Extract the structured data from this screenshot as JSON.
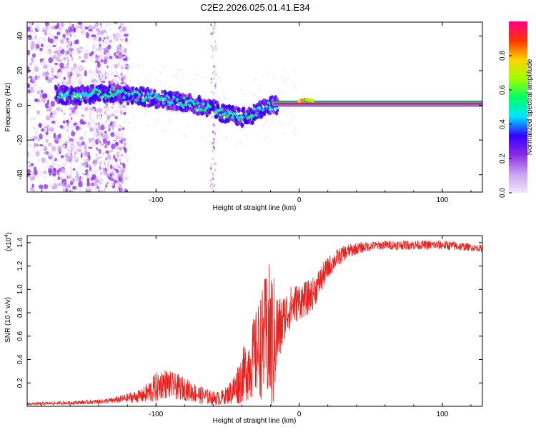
{
  "chart_data": [
    {
      "type": "heatmap",
      "title": "C2E2.2026.025.01.41.E34",
      "xlabel": "Height of straight line (km)",
      "ylabel": "Frequency (Hz)",
      "xlim": [
        -190,
        128
      ],
      "ylim": [
        -50,
        48
      ],
      "x_ticks": [
        -100,
        0,
        100
      ],
      "x_tick_labels": [
        "-100",
        "0",
        "100"
      ],
      "y_ticks": [
        -40,
        -20,
        0,
        20,
        40
      ],
      "y_tick_labels": [
        "-40",
        "-20",
        "0",
        "20",
        "40"
      ],
      "colorbar": {
        "label": "Normalized spectral amplitude",
        "range": [
          0,
          1
        ],
        "ticks": [
          0.0,
          0.2,
          0.4,
          0.6,
          0.8
        ],
        "tick_labels": [
          "0.0",
          "0.2",
          "0.4",
          "0.6",
          "0.8"
        ],
        "colors": [
          "#f2e6fb",
          "#c9a3f0",
          "#8a2be2",
          "#3300ff",
          "#00e5ff",
          "#00ff66",
          "#a0ff00",
          "#ffd000",
          "#ff3300",
          "#ff0088"
        ]
      },
      "ridge": {
        "x": [
          -165,
          -150,
          -140,
          -130,
          -120,
          -110,
          -100,
          -90,
          -80,
          -70,
          -60,
          -55,
          -50,
          -45,
          -40,
          -35,
          -30,
          -25,
          -20,
          -15,
          -10,
          -5,
          0,
          5,
          10,
          20,
          50,
          80,
          128
        ],
        "y": [
          6,
          6,
          7,
          7,
          6,
          5,
          4,
          3,
          2,
          0,
          -2,
          -4,
          -5,
          -6,
          -7,
          -6,
          -4,
          -2,
          0,
          0.5,
          1,
          1,
          1,
          2,
          1,
          1,
          1,
          1,
          1
        ]
      }
    },
    {
      "type": "line",
      "xlabel": "Height of straight line (km)",
      "ylabel": "SNR (10 * v/v)",
      "multiplier": "(x10",
      "multiplier_exp": "4",
      "multiplier_close": ")",
      "xlim": [
        -190,
        128
      ],
      "ylim": [
        0,
        1.46
      ],
      "x_ticks": [
        -100,
        0,
        100
      ],
      "x_tick_labels": [
        "-100",
        "0",
        "100"
      ],
      "y_ticks": [
        0.2,
        0.4,
        0.6,
        0.8,
        1.0,
        1.2,
        1.4
      ],
      "y_tick_labels": [
        "0.2",
        "0.4",
        "0.6",
        "0.8",
        "1.0",
        "1.2",
        "1.4"
      ],
      "series": [
        {
          "name": "SNR",
          "color": "#e8221f",
          "envelope": {
            "x": [
              -190,
              -160,
              -140,
              -130,
              -120,
              -110,
              -105,
              -100,
              -95,
              -90,
              -80,
              -70,
              -60,
              -55,
              -50,
              -45,
              -40,
              -35,
              -30,
              -25,
              -22,
              -20,
              -18,
              -16,
              -14,
              -12,
              -10,
              -5,
              0,
              5,
              10,
              15,
              20,
              25,
              30,
              35,
              40,
              50,
              60,
              80,
              100,
              110,
              120,
              128
            ],
            "base": [
              0.02,
              0.03,
              0.04,
              0.05,
              0.07,
              0.09,
              0.12,
              0.16,
              0.2,
              0.18,
              0.15,
              0.1,
              0.07,
              0.07,
              0.1,
              0.15,
              0.25,
              0.35,
              0.45,
              0.55,
              0.6,
              0.55,
              0.55,
              0.62,
              0.65,
              0.7,
              0.78,
              0.86,
              0.9,
              0.92,
              0.97,
              1.08,
              1.18,
              1.25,
              1.3,
              1.33,
              1.35,
              1.37,
              1.38,
              1.38,
              1.38,
              1.37,
              1.36,
              1.35
            ],
            "amp": [
              0.01,
              0.015,
              0.02,
              0.025,
              0.04,
              0.06,
              0.1,
              0.13,
              0.13,
              0.12,
              0.1,
              0.08,
              0.06,
              0.06,
              0.08,
              0.15,
              0.22,
              0.3,
              0.38,
              0.5,
              0.6,
              0.7,
              0.6,
              0.4,
              0.3,
              0.25,
              0.2,
              0.18,
              0.16,
              0.15,
              0.14,
              0.12,
              0.1,
              0.08,
              0.07,
              0.06,
              0.05,
              0.04,
              0.04,
              0.04,
              0.04,
              0.04,
              0.03,
              0.03
            ]
          }
        }
      ]
    }
  ]
}
